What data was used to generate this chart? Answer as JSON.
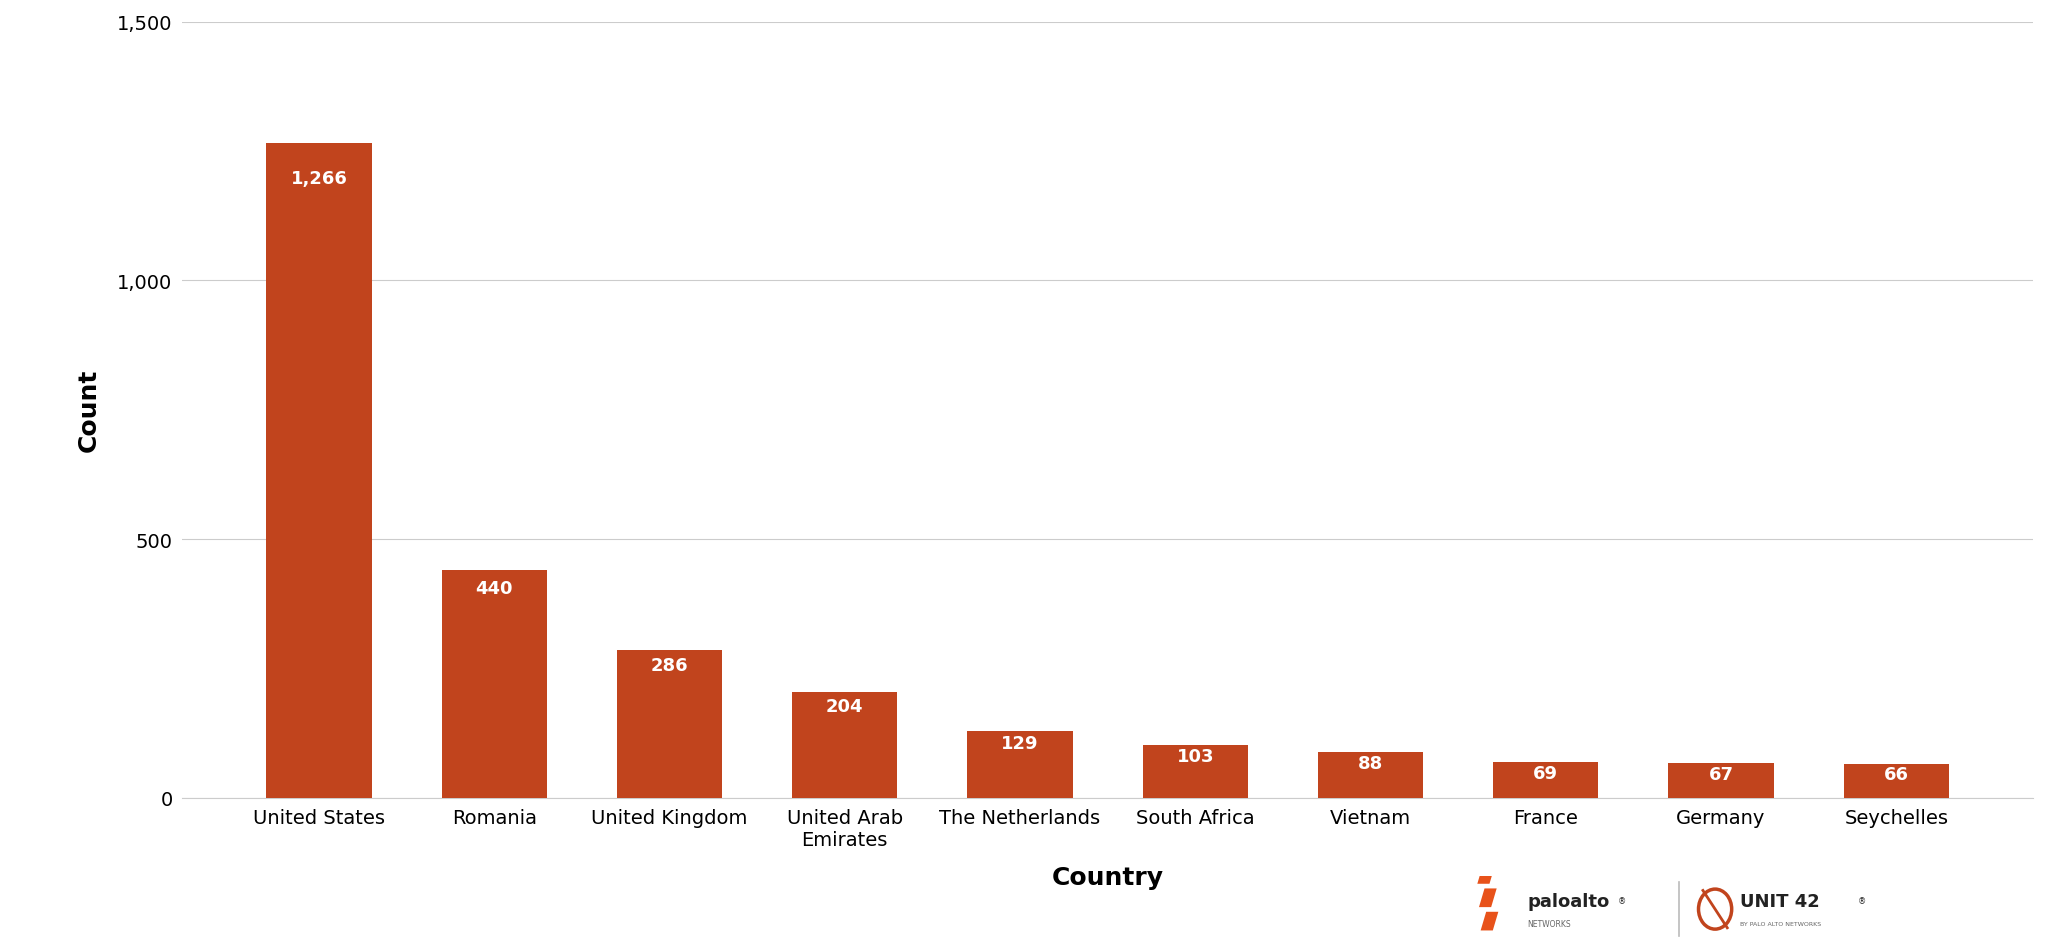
{
  "categories": [
    "United States",
    "Romania",
    "United Kingdom",
    "United Arab\nEmirates",
    "The Netherlands",
    "South Africa",
    "Vietnam",
    "France",
    "Germany",
    "Seychelles"
  ],
  "values": [
    1266,
    440,
    286,
    204,
    129,
    103,
    88,
    69,
    67,
    66
  ],
  "bar_color": "#C1441D",
  "label_color": "#FFFFFF",
  "xlabel": "Country",
  "ylabel": "Count",
  "ylim": [
    0,
    1500
  ],
  "yticks": [
    0,
    500,
    1000,
    1500
  ],
  "background_color": "#FFFFFF",
  "grid_color": "#CCCCCC",
  "axis_label_fontsize": 18,
  "tick_label_fontsize": 14,
  "value_label_fontsize": 13,
  "logo_pan_color": "#E8521A",
  "logo_unit42_color": "#C1441D",
  "logo_text_color": "#222222",
  "logo_sep_color": "#AAAAAA"
}
